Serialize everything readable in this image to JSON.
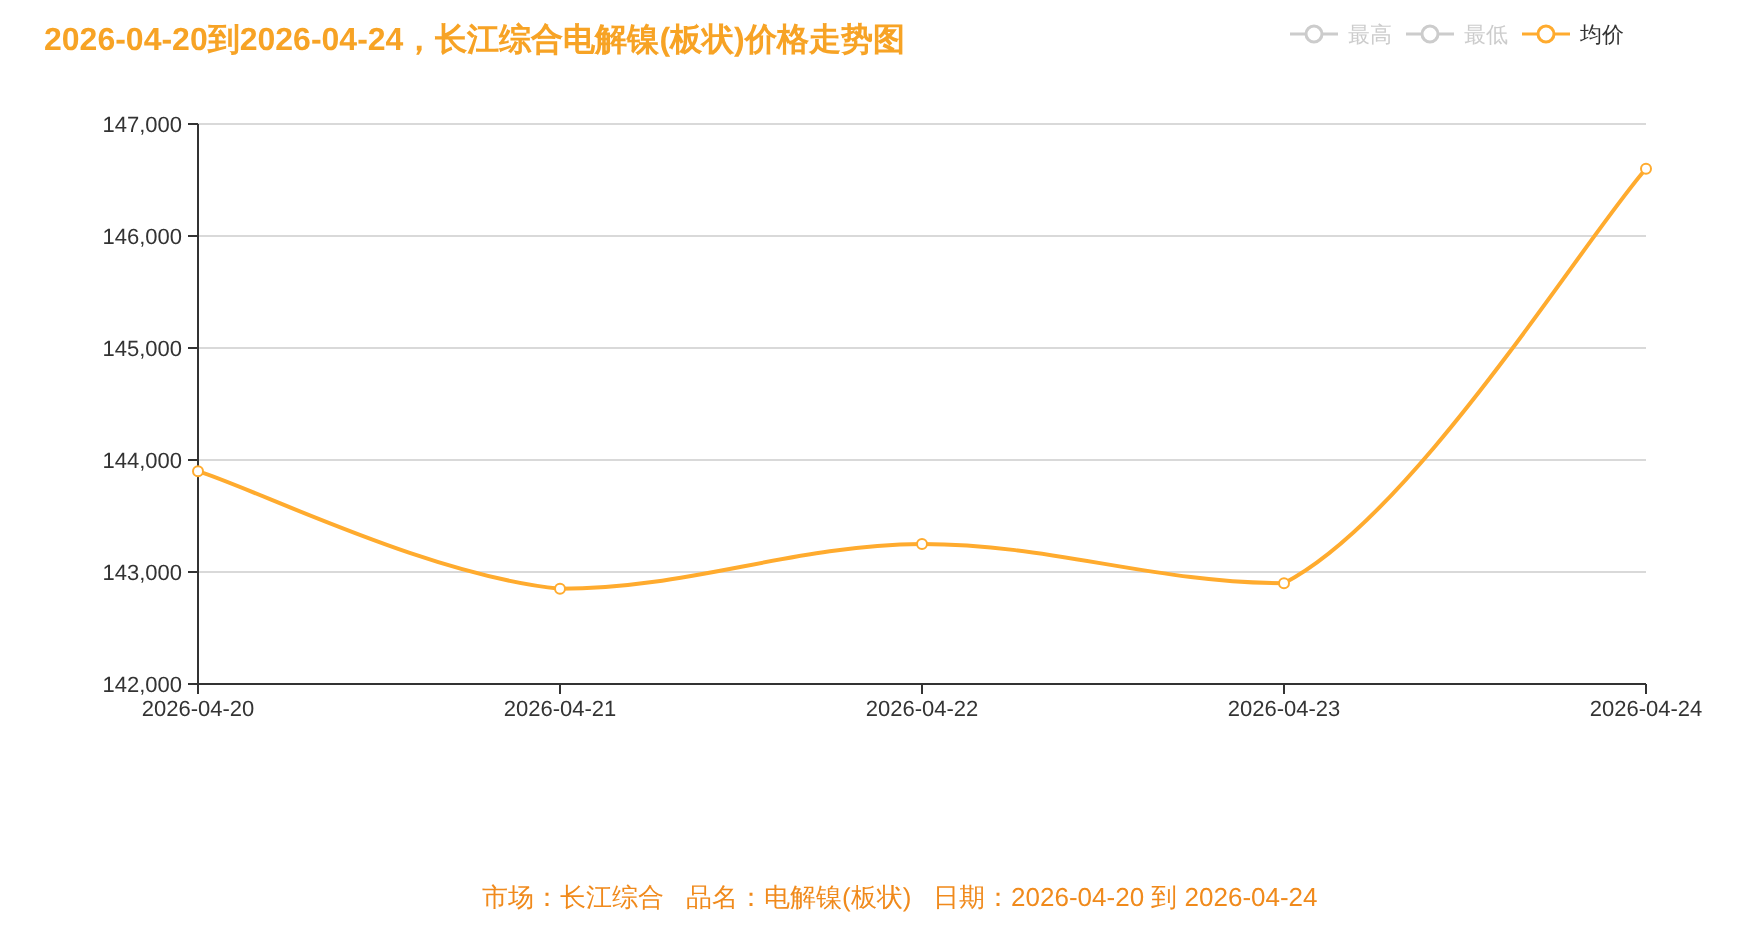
{
  "chart_data": {
    "type": "line",
    "title": "2026-04-20到2026-04-24，长江综合电解镍(板状)价格走势图",
    "categories": [
      "2026-04-20",
      "2026-04-21",
      "2026-04-22",
      "2026-04-23",
      "2026-04-24"
    ],
    "series": [
      {
        "name": "最高",
        "color": "#cccccc",
        "values": [
          null,
          null,
          null,
          null,
          null
        ]
      },
      {
        "name": "最低",
        "color": "#cccccc",
        "values": [
          null,
          null,
          null,
          null,
          null
        ]
      },
      {
        "name": "均价",
        "color": "#ffab2e",
        "values": [
          143900,
          142850,
          143250,
          142900,
          146600
        ]
      }
    ],
    "ylim": [
      142000,
      147000
    ],
    "yticks": [
      {
        "value": 142000,
        "label": "142,000"
      },
      {
        "value": 143000,
        "label": "143,000"
      },
      {
        "value": 144000,
        "label": "144,000"
      },
      {
        "value": 145000,
        "label": "145,000"
      },
      {
        "value": 146000,
        "label": "146,000"
      },
      {
        "value": 147000,
        "label": "147,000"
      }
    ],
    "grid": "y",
    "legend": "top right",
    "marker": "circle",
    "line_style": "solid",
    "annotations": [
      "市场：长江综合   品名：电解镍(板状)   日期：2026-04-20 到 2026-04-24"
    ]
  }
}
